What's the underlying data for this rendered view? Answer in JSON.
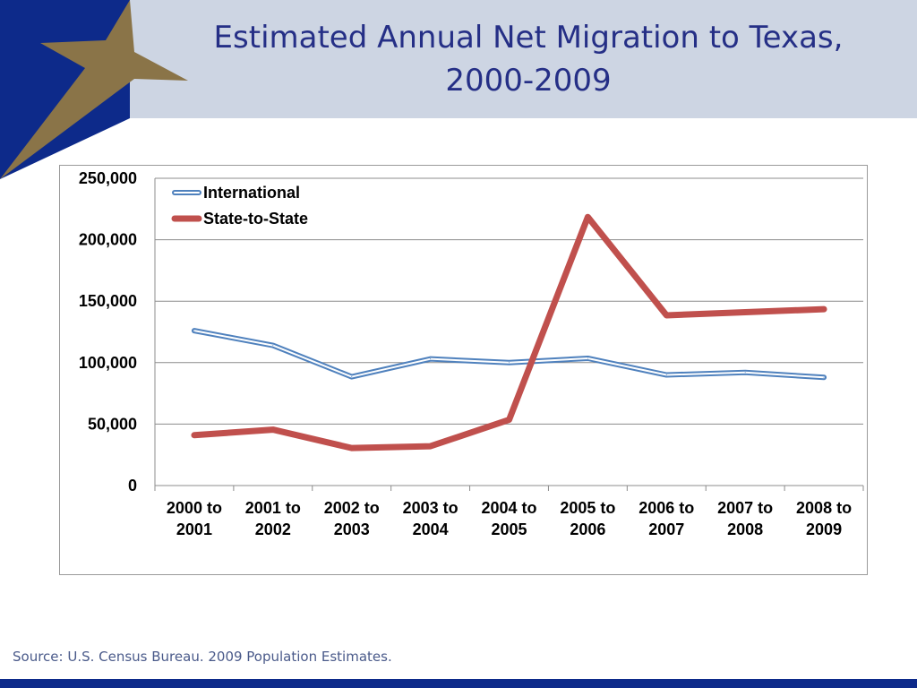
{
  "slide": {
    "title_line1": "Estimated Annual Net Migration to Texas,",
    "title_line2": "2000-2009",
    "source": "Source: U.S. Census Bureau. 2009 Population Estimates."
  },
  "colors": {
    "header_band": "#cdd5e3",
    "navy": "#0d2a8a",
    "gold": "#8a7448",
    "title": "#252f86"
  },
  "chart_data": {
    "type": "line",
    "title": "",
    "xlabel": "",
    "ylabel": "",
    "categories": [
      [
        "2000 to",
        "2001"
      ],
      [
        "2001 to",
        "2002"
      ],
      [
        "2002 to",
        "2003"
      ],
      [
        "2003 to",
        "2004"
      ],
      [
        "2004 to",
        "2005"
      ],
      [
        "2005 to",
        "2006"
      ],
      [
        "2006 to",
        "2007"
      ],
      [
        "2007 to",
        "2008"
      ],
      [
        "2008 to",
        "2009"
      ]
    ],
    "ylim": [
      0,
      250000
    ],
    "yticks": [
      0,
      50000,
      100000,
      150000,
      200000,
      250000
    ],
    "ytick_labels": [
      "0",
      "50,000",
      "100,000",
      "150,000",
      "200,000",
      "250,000"
    ],
    "grid": true,
    "legend_position": "top-left",
    "series": [
      {
        "name": "International",
        "color": "#4f81bd",
        "style": "double-outline",
        "values": [
          126000,
          114000,
          88500,
          103000,
          100000,
          103500,
          90000,
          92000,
          88000
        ]
      },
      {
        "name": "State-to-State",
        "color": "#c0504d",
        "style": "thick",
        "values": [
          41000,
          45500,
          30500,
          32000,
          53500,
          218500,
          138500,
          141000,
          143500
        ]
      }
    ]
  }
}
